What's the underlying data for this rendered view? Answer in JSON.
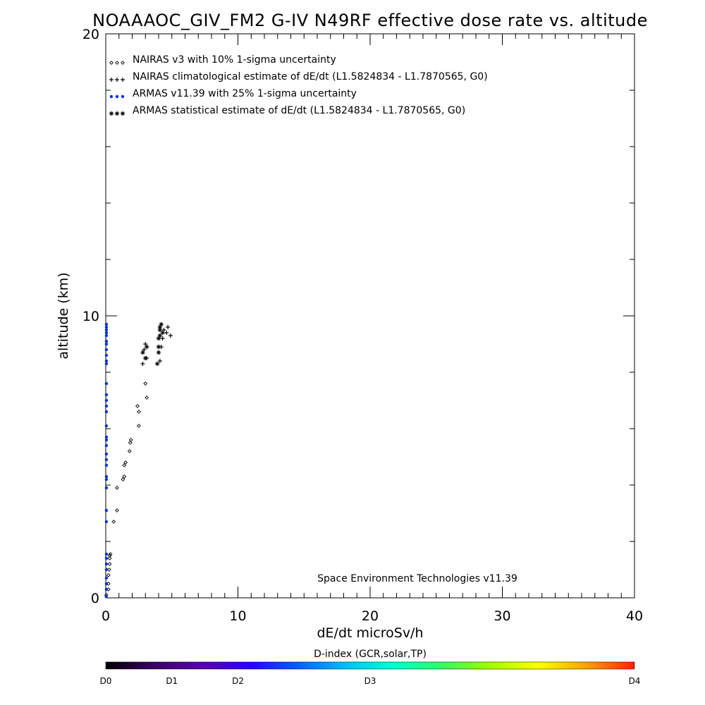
{
  "chart_data": {
    "type": "scatter",
    "title": "NOAAAOC_GIV_FM2 G-IV   N49RF  effective dose rate vs. altitude",
    "xlabel": "dE/dt microSv/h",
    "ylabel": "altitude (km)",
    "xlim": [
      0,
      40
    ],
    "ylim": [
      0,
      20
    ],
    "x_ticks": [
      "0",
      "10",
      "20",
      "30",
      "40"
    ],
    "y_ticks": [
      "0",
      "10",
      "20"
    ],
    "credit": "Space Environment Technologies v11.39",
    "legend_placement": "top-left",
    "series": [
      {
        "name": "NAIRAS v3 with 10% 1-sigma uncertainty",
        "marker": "diamond",
        "color": "#000000",
        "points": [
          [
            0.05,
            0.1
          ],
          [
            0.2,
            0.3
          ],
          [
            0.2,
            0.5
          ],
          [
            0.2,
            0.8
          ],
          [
            0.25,
            1.0
          ],
          [
            0.3,
            1.2
          ],
          [
            0.3,
            1.4
          ],
          [
            0.3,
            1.5
          ],
          [
            0.35,
            1.55
          ],
          [
            0.6,
            2.7
          ],
          [
            0.85,
            3.1
          ],
          [
            0.85,
            3.9
          ],
          [
            1.3,
            4.2
          ],
          [
            1.4,
            4.3
          ],
          [
            1.4,
            4.7
          ],
          [
            1.5,
            4.8
          ],
          [
            1.8,
            5.2
          ],
          [
            1.85,
            5.5
          ],
          [
            1.9,
            5.6
          ],
          [
            2.5,
            6.1
          ],
          [
            2.5,
            6.6
          ],
          [
            2.4,
            6.8
          ],
          [
            3.1,
            7.1
          ],
          [
            3.0,
            7.6
          ]
        ]
      },
      {
        "name": "NAIRAS climatological estimate of dE/dt (L1.5824834 - L1.7870565, G0)",
        "marker": "plus",
        "color": "#000000",
        "points": [
          [
            2.8,
            8.3
          ],
          [
            3.1,
            8.5
          ],
          [
            4.1,
            8.4
          ],
          [
            2.9,
            8.8
          ],
          [
            3.0,
            9.0
          ],
          [
            4.2,
            8.9
          ],
          [
            4.3,
            9.2
          ],
          [
            4.4,
            9.5
          ],
          [
            4.6,
            9.4
          ],
          [
            4.7,
            9.6
          ],
          [
            4.9,
            9.3
          ]
        ]
      },
      {
        "name": "ARMAS v11.39 with 25% 1-sigma uncertainty",
        "marker": "dot",
        "color": "#0033cc",
        "points": [
          [
            0.03,
            0.05
          ],
          [
            0.05,
            0.3
          ],
          [
            0.05,
            0.5
          ],
          [
            0.05,
            0.7
          ],
          [
            0.05,
            1.0
          ],
          [
            0.05,
            1.2
          ],
          [
            0.05,
            1.4
          ],
          [
            0.05,
            1.55
          ],
          [
            0.05,
            2.7
          ],
          [
            0.05,
            3.1
          ],
          [
            0.05,
            3.9
          ],
          [
            0.05,
            4.2
          ],
          [
            0.05,
            4.3
          ],
          [
            0.05,
            4.7
          ],
          [
            0.05,
            4.9
          ],
          [
            0.05,
            5.1
          ],
          [
            0.05,
            5.4
          ],
          [
            0.05,
            5.6
          ],
          [
            0.05,
            5.7
          ],
          [
            0.05,
            6.1
          ],
          [
            0.05,
            6.6
          ],
          [
            0.05,
            6.8
          ],
          [
            0.05,
            7.0
          ],
          [
            0.05,
            7.2
          ],
          [
            0.05,
            7.6
          ],
          [
            0.05,
            8.3
          ],
          [
            0.05,
            8.4
          ],
          [
            0.05,
            8.6
          ],
          [
            0.05,
            8.8
          ],
          [
            0.05,
            9.0
          ],
          [
            0.05,
            9.1
          ],
          [
            0.05,
            9.3
          ],
          [
            0.05,
            9.4
          ],
          [
            0.05,
            9.5
          ],
          [
            0.05,
            9.6
          ],
          [
            0.05,
            9.7
          ]
        ]
      },
      {
        "name": "ARMAS statistical estimate of dE/dt (L1.5824834 - L1.7870565, G0)",
        "marker": "asterisk",
        "color": "#000000",
        "points": [
          [
            2.8,
            8.7
          ],
          [
            3.1,
            8.9
          ],
          [
            3.0,
            8.5
          ],
          [
            3.9,
            8.3
          ],
          [
            4.0,
            8.7
          ],
          [
            4.0,
            8.9
          ],
          [
            4.0,
            9.2
          ],
          [
            4.1,
            9.3
          ],
          [
            4.1,
            9.5
          ],
          [
            4.1,
            9.6
          ],
          [
            4.2,
            9.7
          ],
          [
            4.3,
            9.4
          ]
        ]
      }
    ],
    "colorbar": {
      "title": "D-index (GCR,solar,TP)",
      "labels": [
        "D0",
        "D1",
        "D2",
        "D3",
        "D4"
      ],
      "label_positions": [
        0,
        0.125,
        0.25,
        0.5,
        1.0
      ],
      "stops": [
        "#000000",
        "#3a0066",
        "#5a00b0",
        "#2a00ff",
        "#0060ff",
        "#00c0ff",
        "#00ffd0",
        "#30ff60",
        "#a0ff00",
        "#ffff00",
        "#ffa000",
        "#ff2000"
      ]
    }
  }
}
